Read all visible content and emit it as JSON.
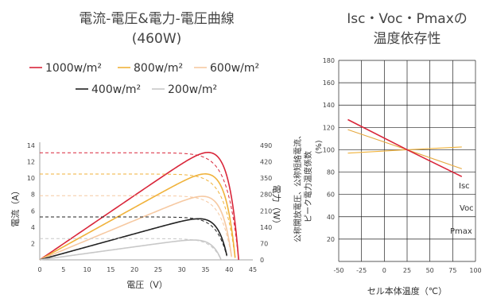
{
  "chart_data": [
    {
      "type": "line",
      "title": "電流-電圧&電力-電圧曲線",
      "subtitle": "(460W)",
      "xlabel": "電圧（V）",
      "ylabel": "電流（A）",
      "y2label": "電力（W）",
      "xlim": [
        0,
        45
      ],
      "ylim": [
        0,
        14
      ],
      "y2lim": [
        0,
        490
      ],
      "x_ticks": [
        0,
        5,
        10,
        15,
        20,
        25,
        30,
        35,
        40,
        45
      ],
      "y_ticks": [
        2,
        4,
        6,
        8,
        10,
        12,
        14
      ],
      "y2_ticks": [
        0,
        70,
        140,
        210,
        280,
        350,
        420,
        490
      ],
      "legend": [
        "1000w/m²",
        "800w/m²",
        "600w/m²",
        "400w/m²",
        "200w/m²"
      ],
      "colors": {
        "1000": "#d9263a",
        "800": "#f0b23a",
        "600": "#f6c9a2",
        "400": "#222222",
        "200": "#c8c8c8"
      },
      "series": [
        {
          "name": "1000w/m²",
          "isc": 13.1,
          "voc": 42.0,
          "pmax": 460,
          "vmp": 34.5
        },
        {
          "name": "800w/m²",
          "isc": 10.5,
          "voc": 41.3,
          "pmax": 368,
          "vmp": 34.2
        },
        {
          "name": "600w/m²",
          "isc": 7.85,
          "voc": 40.6,
          "pmax": 272,
          "vmp": 33.8
        },
        {
          "name": "400w/m²",
          "isc": 5.25,
          "voc": 39.7,
          "pmax": 176,
          "vmp": 33.4
        },
        {
          "name": "200w/m²",
          "isc": 2.6,
          "voc": 38.3,
          "pmax": 85,
          "vmp": 32.5
        }
      ]
    },
    {
      "type": "line",
      "title": "Isc・Voc・Pmaxの",
      "subtitle": "温度依存性",
      "xlabel": "セル本体温度（℃）",
      "ylabel_lines": [
        "公称開放電圧、公称短絡電流、",
        "ピーク電力温度係数",
        "(%)"
      ],
      "xlim": [
        -50,
        100
      ],
      "ylim": [
        0,
        180
      ],
      "x_ticks": [
        -50,
        -25,
        0,
        25,
        50,
        75,
        100
      ],
      "y_ticks": [
        20,
        40,
        60,
        80,
        100,
        120,
        140,
        160,
        180
      ],
      "grid": true,
      "series": [
        {
          "name": "Isc",
          "x": [
            -40,
            25,
            85
          ],
          "y": [
            97,
            100,
            102.5
          ],
          "color": "#f0b23a"
        },
        {
          "name": "Voc",
          "x": [
            -40,
            25,
            85
          ],
          "y": [
            118,
            100,
            83
          ],
          "color": "#e5a83e"
        },
        {
          "name": "Pmax",
          "x": [
            -40,
            25,
            85
          ],
          "y": [
            127,
            100,
            76
          ],
          "color": "#d9263a"
        }
      ]
    }
  ]
}
